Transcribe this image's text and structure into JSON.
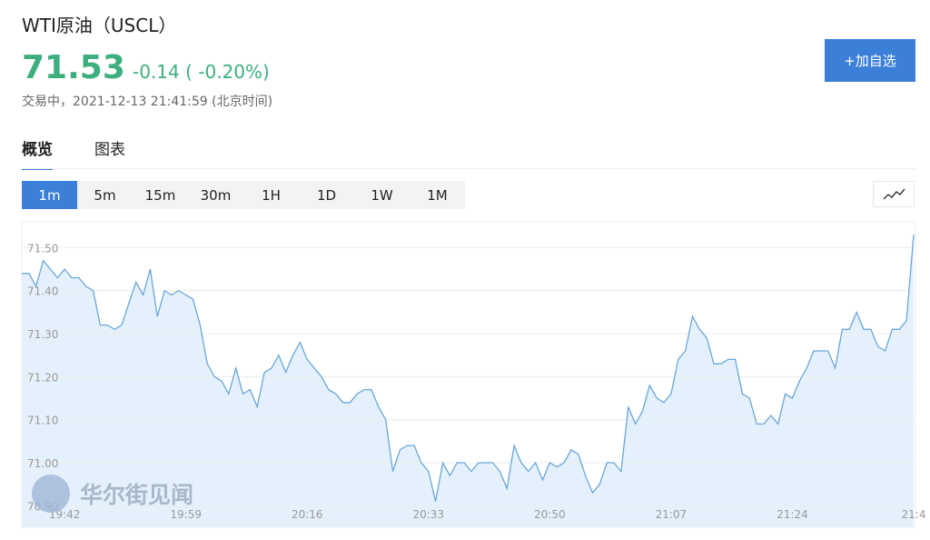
{
  "header": {
    "title": "WTI原油（USCL）",
    "price": "71.53",
    "change": "-0.14 ( -0.20%)",
    "status": "交易中，2021-12-13 21:41:59 (北京时间)",
    "button": "+加自选"
  },
  "tabs": [
    "概览",
    "图表"
  ],
  "periods": [
    "1m",
    "5m",
    "15m",
    "30m",
    "1H",
    "1D",
    "1W",
    "1M"
  ],
  "watermark": "华尔街见闻",
  "chart_data": {
    "type": "line",
    "color": "#6aa6d8",
    "area_color": "#e4f1fc",
    "grid": true,
    "categories": [
      null,
      null,
      null,
      null,
      null,
      null,
      "19:42",
      null,
      null,
      null,
      null,
      null,
      null,
      null,
      null,
      null,
      null,
      null,
      null,
      null,
      null,
      null,
      null,
      "19:59",
      null,
      null,
      null,
      null,
      null,
      null,
      null,
      null,
      null,
      null,
      null,
      null,
      null,
      null,
      null,
      null,
      "20:16",
      null,
      null,
      null,
      null,
      null,
      null,
      null,
      null,
      null,
      null,
      null,
      null,
      null,
      null,
      null,
      null,
      "20:33",
      null,
      null,
      null,
      null,
      null,
      null,
      null,
      null,
      null,
      null,
      null,
      null,
      null,
      null,
      null,
      null,
      "20:50",
      null,
      null,
      null,
      null,
      null,
      null,
      null,
      null,
      null,
      null,
      null,
      null,
      null,
      null,
      null,
      null,
      "21:07",
      null,
      null,
      null,
      null,
      null,
      null,
      null,
      null,
      null,
      null,
      null,
      null,
      null,
      null,
      null,
      null,
      "21:24",
      null,
      null,
      null,
      null,
      null,
      null,
      null,
      null,
      null,
      null,
      null,
      null,
      null,
      null,
      null,
      null,
      "21:4"
    ],
    "values": [
      71.44,
      71.44,
      71.41,
      71.47,
      71.45,
      71.43,
      71.45,
      71.43,
      71.43,
      71.41,
      71.4,
      71.32,
      71.32,
      71.31,
      71.32,
      71.37,
      71.42,
      71.39,
      71.45,
      71.34,
      71.4,
      71.39,
      71.4,
      71.39,
      71.38,
      71.32,
      71.23,
      71.2,
      71.19,
      71.16,
      71.22,
      71.16,
      71.17,
      71.13,
      71.21,
      71.22,
      71.25,
      71.21,
      71.25,
      71.28,
      71.24,
      71.22,
      71.2,
      71.17,
      71.16,
      71.14,
      71.14,
      71.16,
      71.17,
      71.17,
      71.13,
      71.1,
      70.98,
      71.03,
      71.04,
      71.04,
      71.0,
      70.98,
      70.91,
      71.0,
      70.97,
      71.0,
      71.0,
      70.98,
      71.0,
      71.0,
      71.0,
      70.98,
      70.94,
      71.04,
      71.0,
      70.98,
      71.0,
      70.96,
      71.0,
      70.99,
      71.0,
      71.03,
      71.02,
      70.97,
      70.93,
      70.95,
      71.0,
      71.0,
      70.98,
      71.13,
      71.09,
      71.12,
      71.18,
      71.15,
      71.14,
      71.16,
      71.24,
      71.26,
      71.34,
      71.31,
      71.29,
      71.23,
      71.23,
      71.24,
      71.24,
      71.16,
      71.15,
      71.09,
      71.09,
      71.11,
      71.09,
      71.16,
      71.15,
      71.19,
      71.22,
      71.26,
      71.26,
      71.26,
      71.22,
      71.31,
      71.31,
      71.35,
      71.31,
      71.31,
      71.27,
      71.26,
      71.31,
      71.31,
      71.33,
      71.53
    ],
    "ylim": [
      70.85,
      71.56
    ],
    "yticks": [
      {
        "value": 70.9,
        "label": "70.90"
      },
      {
        "value": 71,
        "label": "71.00"
      },
      {
        "value": 71.1,
        "label": "71.10"
      },
      {
        "value": 71.2,
        "label": "71.20"
      },
      {
        "value": 71.3,
        "label": "71.30"
      },
      {
        "value": 71.4,
        "label": "71.40"
      },
      {
        "value": 71.5,
        "label": "71.50"
      }
    ]
  }
}
